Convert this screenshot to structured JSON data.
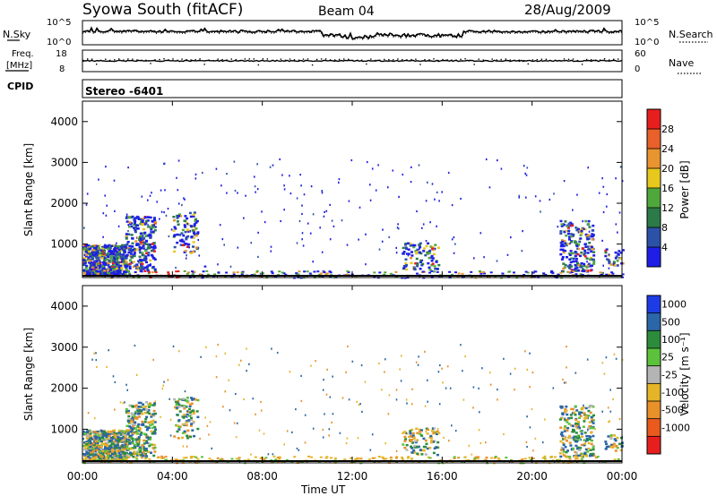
{
  "header": {
    "station": "Syowa South (fitACF)",
    "beam": "Beam 04",
    "date": "28/Aug/2009"
  },
  "top_panels": {
    "nsky": {
      "label": "N.Sky",
      "left_ticks": [
        "10^5",
        "10^0"
      ],
      "right_ticks": [
        "10^5",
        "10^0"
      ],
      "right_label": "N.Search"
    },
    "freq": {
      "label_line1": "Freq.",
      "label_line2": "[MHz]",
      "left_ticks": [
        "18",
        "8"
      ],
      "right_ticks": [
        "60",
        "0"
      ],
      "right_label": "Nave"
    },
    "cpid": {
      "label": "CPID",
      "value": "Stereo -6401"
    }
  },
  "chart_data": [
    {
      "type": "heatmap",
      "quantity": "power",
      "ylabel": "Slant Range [km]",
      "ylim": [
        180,
        4500
      ],
      "yticks": [
        "1000",
        "2000",
        "3000",
        "4000"
      ],
      "colorbar": {
        "label": "Power [dB]",
        "ticks": [
          "4",
          "8",
          "12",
          "16",
          "20",
          "24",
          "28"
        ],
        "colors": [
          "#1e1ee6",
          "#2c52a8",
          "#2c7a48",
          "#4fa83c",
          "#e6c81e",
          "#e89430",
          "#e8602a",
          "#e61e1e"
        ]
      }
    },
    {
      "type": "heatmap",
      "quantity": "velocity",
      "ylabel": "Slant Range [km]",
      "ylim": [
        180,
        4500
      ],
      "yticks": [
        "1000",
        "2000",
        "3000",
        "4000"
      ],
      "xlabel": "Time UT",
      "xticks": [
        "00:00",
        "04:00",
        "08:00",
        "12:00",
        "16:00",
        "20:00",
        "00:00"
      ],
      "colorbar": {
        "label": "Velocity [m s⁻¹]",
        "ticks": [
          "1000",
          "500",
          "100",
          "25",
          "-25",
          "-100",
          "-500",
          "-1000"
        ],
        "colors": [
          "#1e3ce6",
          "#2a66a8",
          "#2c8c3c",
          "#5cc23c",
          "#b4b4b4",
          "#e6b428",
          "#e8902a",
          "#e85a1e",
          "#e61e1e"
        ]
      }
    }
  ]
}
